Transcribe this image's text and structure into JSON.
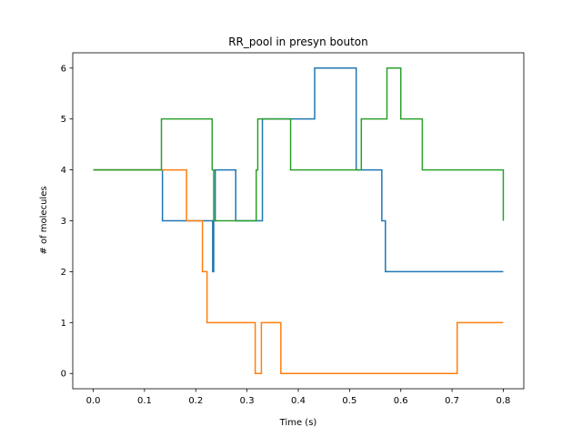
{
  "chart_data": {
    "type": "line",
    "title": "RR_pool in presyn bouton",
    "xlabel": "Time (s)",
    "ylabel": "# of molecules",
    "xlim": [
      -0.04,
      0.84
    ],
    "ylim": [
      -0.3,
      6.3
    ],
    "xticks": [
      0.0,
      0.1,
      0.2,
      0.3,
      0.4,
      0.5,
      0.6,
      0.7,
      0.8
    ],
    "xtick_labels": [
      "0.0",
      "0.1",
      "0.2",
      "0.3",
      "0.4",
      "0.5",
      "0.6",
      "0.7",
      "0.8"
    ],
    "yticks": [
      0,
      1,
      2,
      3,
      4,
      5,
      6
    ],
    "ytick_labels": [
      "0",
      "1",
      "2",
      "3",
      "4",
      "5",
      "6"
    ],
    "grid": false,
    "step": "post",
    "series": [
      {
        "color": "#1f77b4",
        "x": [
          0.0,
          0.135,
          0.233,
          0.235,
          0.238,
          0.278,
          0.33,
          0.432,
          0.513,
          0.563,
          0.57,
          0.8
        ],
        "y": [
          4,
          3,
          2,
          3,
          4,
          3,
          5,
          6,
          4,
          3,
          2,
          2
        ]
      },
      {
        "color": "#ff7f0e",
        "x": [
          0.0,
          0.182,
          0.213,
          0.222,
          0.316,
          0.328,
          0.366,
          0.71,
          0.8
        ],
        "y": [
          4,
          3,
          2,
          1,
          0,
          1,
          0,
          1,
          1
        ]
      },
      {
        "color": "#2ca02c",
        "x": [
          0.0,
          0.133,
          0.232,
          0.235,
          0.318,
          0.321,
          0.385,
          0.523,
          0.573,
          0.6,
          0.642,
          0.8
        ],
        "y": [
          4,
          5,
          4,
          3,
          4,
          5,
          4,
          5,
          6,
          5,
          4,
          3
        ]
      }
    ]
  }
}
